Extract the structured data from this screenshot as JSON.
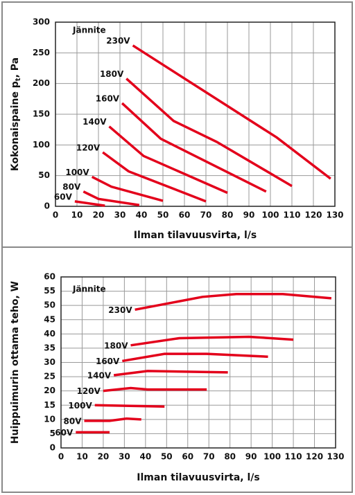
{
  "chart_data": [
    {
      "type": "line",
      "annotation": "Jännite",
      "xlabel": "Ilman tilavuusvirta, l/s",
      "ylabel": [
        "Kokonaispaine p",
        "t",
        ", Pa"
      ],
      "xlim": [
        0,
        130
      ],
      "ylim": [
        0,
        300
      ],
      "xticks": [
        0,
        10,
        20,
        30,
        40,
        50,
        60,
        70,
        80,
        90,
        100,
        110,
        120,
        130
      ],
      "yticks": [
        0,
        50,
        100,
        150,
        200,
        250,
        300
      ],
      "grid": true,
      "series": [
        {
          "name": "230V",
          "color": "#e3001b",
          "x": [
            36,
            103,
            128
          ],
          "values": [
            262,
            112,
            45
          ]
        },
        {
          "name": "180V",
          "color": "#e3001b",
          "x": [
            33,
            55,
            75,
            110
          ],
          "values": [
            208,
            139,
            105,
            33
          ]
        },
        {
          "name": "160V",
          "color": "#e3001b",
          "x": [
            31,
            49,
            98
          ],
          "values": [
            168,
            110,
            24
          ]
        },
        {
          "name": "140V",
          "color": "#e3001b",
          "x": [
            25,
            41,
            80
          ],
          "values": [
            130,
            82,
            22
          ]
        },
        {
          "name": "120V",
          "color": "#e3001b",
          "x": [
            22,
            34,
            70
          ],
          "values": [
            88,
            57,
            8
          ]
        },
        {
          "name": "100V",
          "color": "#e3001b",
          "x": [
            17,
            26,
            50
          ],
          "values": [
            48,
            32,
            9
          ]
        },
        {
          "name": "80V",
          "color": "#e3001b",
          "x": [
            13,
            20,
            39
          ],
          "values": [
            24,
            12,
            2
          ]
        },
        {
          "name": "60V",
          "color": "#e3001b",
          "x": [
            9,
            23
          ],
          "values": [
            8,
            1
          ]
        }
      ]
    },
    {
      "type": "line",
      "annotation": "Jännite",
      "xlabel": "Ilman tilavuusvirta, l/s",
      "ylabel": [
        "Huippuimurin ottama teho, W"
      ],
      "xlim": [
        0,
        130
      ],
      "ylim": [
        0,
        60
      ],
      "xticks": [
        0,
        10,
        20,
        30,
        40,
        50,
        60,
        70,
        80,
        90,
        100,
        110,
        120,
        130
      ],
      "yticks": [
        0,
        5,
        10,
        15,
        20,
        25,
        30,
        35,
        40,
        45,
        50,
        55,
        60
      ],
      "grid": true,
      "series": [
        {
          "name": "230V",
          "color": "#e3001b",
          "x": [
            35,
            67,
            83,
            105,
            128
          ],
          "values": [
            48.5,
            53,
            54,
            54,
            52.5
          ]
        },
        {
          "name": "180V",
          "color": "#e3001b",
          "x": [
            33,
            56,
            89,
            110
          ],
          "values": [
            36,
            38.5,
            39,
            38
          ]
        },
        {
          "name": "160V",
          "color": "#e3001b",
          "x": [
            29,
            49,
            69,
            98
          ],
          "values": [
            30.5,
            33,
            33,
            32
          ]
        },
        {
          "name": "140V",
          "color": "#e3001b",
          "x": [
            25,
            41,
            79
          ],
          "values": [
            25.5,
            27,
            26.5
          ]
        },
        {
          "name": "120V",
          "color": "#e3001b",
          "x": [
            20,
            33,
            41,
            69
          ],
          "values": [
            20,
            21,
            20.5,
            20.5
          ]
        },
        {
          "name": "100V",
          "color": "#e3001b",
          "x": [
            16,
            49
          ],
          "values": [
            15,
            14.5
          ]
        },
        {
          "name": "80V",
          "color": "#e3001b",
          "x": [
            11,
            23,
            31,
            38
          ],
          "values": [
            9.5,
            9.5,
            10.3,
            10
          ]
        },
        {
          "name": "60V",
          "color": "#e3001b",
          "x": [
            7,
            23
          ],
          "values": [
            5.5,
            5.5
          ]
        }
      ]
    }
  ]
}
